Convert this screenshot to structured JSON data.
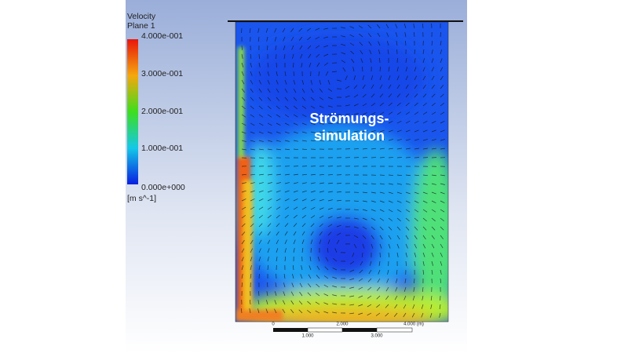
{
  "legend": {
    "title": "Velocity",
    "subtitle": "Plane 1",
    "labels": [
      "4.000e-001",
      "3.000e-001",
      "2.000e-001",
      "1.000e-001",
      "0.000e+000"
    ],
    "unit": "[m s^-1]"
  },
  "overlay": {
    "line1": "Strömungs-",
    "line2": "simulation"
  },
  "scale_bar": {
    "top_labels": [
      "0",
      "2.000",
      "4.000 (m)"
    ],
    "bottom_labels": [
      "1.000",
      "3.000"
    ]
  }
}
